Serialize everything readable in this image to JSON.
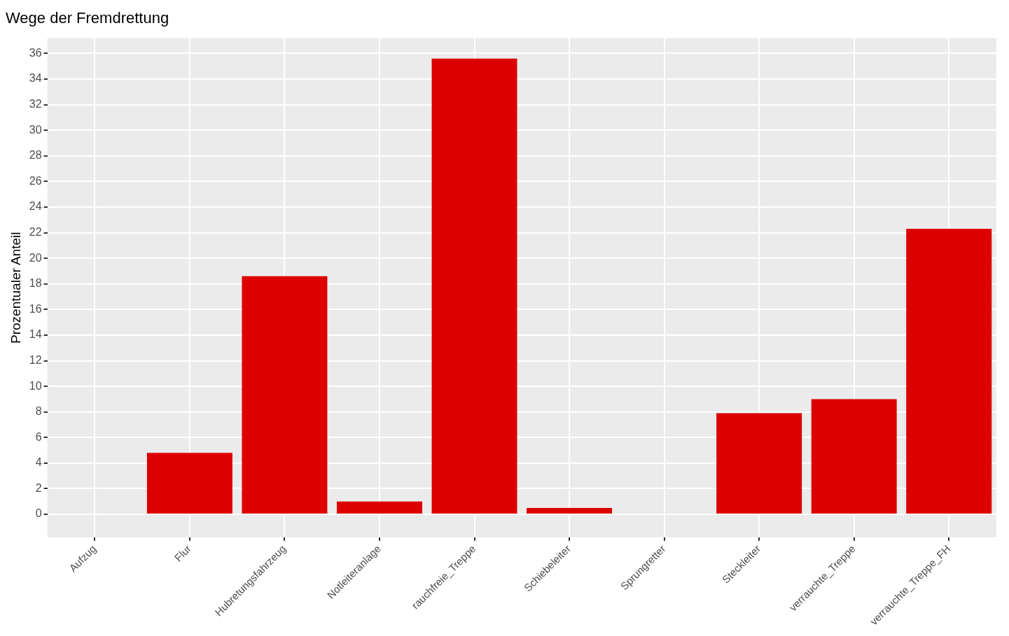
{
  "chart_data": {
    "type": "bar",
    "title": "Wege der Fremdrettung",
    "ylabel": "Prozentualer Anteil",
    "categories": [
      "Aufzug",
      "Flur",
      "Hubretungsfahrzeug",
      "Notleiteranlage",
      "rauchfreie_Treppe",
      "Schiebeleiter",
      "Sprungretter",
      "Steckleiter",
      "verrauchte_Treppe",
      "verrauchte_Treppe_FH"
    ],
    "values": [
      0,
      4.8,
      18.6,
      1.0,
      35.6,
      0.5,
      0,
      7.9,
      9.0,
      22.3
    ],
    "color": "#dd0000",
    "ylim": [
      -1.8,
      37.2
    ],
    "yticks": [
      0,
      2,
      4,
      6,
      8,
      10,
      12,
      14,
      16,
      18,
      20,
      22,
      24,
      26,
      28,
      30,
      32,
      34,
      36
    ],
    "grid": true,
    "legend": false
  }
}
